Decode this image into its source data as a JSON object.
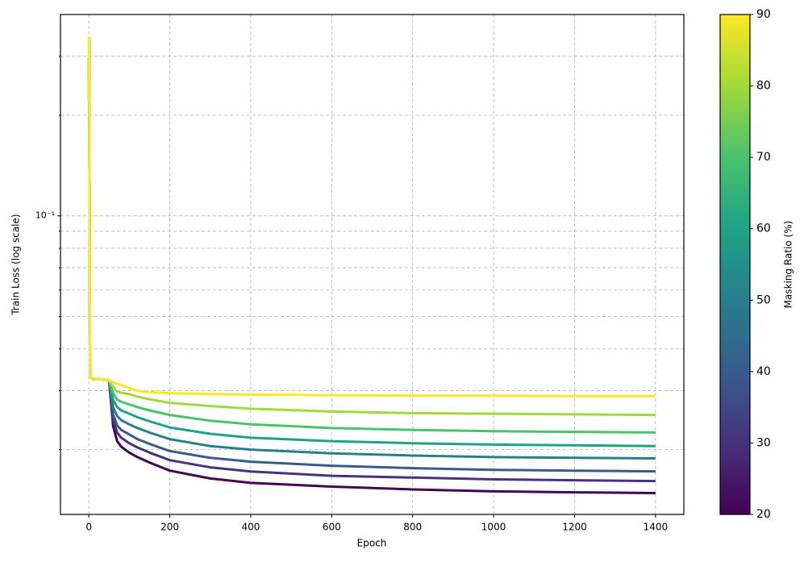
{
  "chart_data": {
    "type": "line",
    "xlabel": "Epoch",
    "ylabel": "Train Loss (log scale)",
    "x": [
      0,
      1,
      3,
      10,
      20,
      40,
      50,
      60,
      70,
      80,
      100,
      120,
      150,
      200,
      300,
      400,
      600,
      800,
      1000,
      1200,
      1400
    ],
    "xlim": [
      -70,
      1470
    ],
    "xticks": [
      0,
      200,
      400,
      600,
      800,
      1000,
      1200,
      1400
    ],
    "ylim": [
      0.0128,
      0.4
    ],
    "yscale": "log",
    "yticks": [
      {
        "value": 0.1,
        "label": "10⁻¹"
      }
    ],
    "yminorticks": [
      0.02,
      0.03,
      0.04,
      0.05,
      0.06,
      0.07,
      0.08,
      0.09,
      0.2,
      0.3
    ],
    "grid": true,
    "series": [
      {
        "color": "#440154",
        "values": [
          0.22,
          0.34,
          0.033,
          0.0325,
          0.0325,
          0.0324,
          0.0322,
          0.0235,
          0.0212,
          0.0204,
          0.0196,
          0.019,
          0.0183,
          0.0173,
          0.0164,
          0.0159,
          0.0155,
          0.0152,
          0.015,
          0.0149,
          0.01483
        ]
      },
      {
        "color": "#46327e",
        "values": [
          0.22,
          0.34,
          0.033,
          0.0325,
          0.0325,
          0.0324,
          0.0322,
          0.0245,
          0.0225,
          0.0217,
          0.0209,
          0.0203,
          0.0196,
          0.0186,
          0.0177,
          0.0172,
          0.0167,
          0.0165,
          0.0163,
          0.0162,
          0.01611
        ]
      },
      {
        "color": "#365c8d",
        "values": [
          0.22,
          0.34,
          0.033,
          0.0325,
          0.0325,
          0.0324,
          0.0322,
          0.0255,
          0.0236,
          0.0229,
          0.0222,
          0.0215,
          0.0208,
          0.0198,
          0.0189,
          0.0184,
          0.0179,
          0.0176,
          0.0174,
          0.0173,
          0.01722
        ]
      },
      {
        "color": "#277f8e",
        "values": [
          0.22,
          0.34,
          0.033,
          0.0325,
          0.0325,
          0.0324,
          0.0322,
          0.0268,
          0.0252,
          0.0245,
          0.0238,
          0.0232,
          0.0225,
          0.0215,
          0.0205,
          0.02,
          0.0195,
          0.0192,
          0.019,
          0.0189,
          0.01883
        ]
      },
      {
        "color": "#1fa187",
        "values": [
          0.22,
          0.34,
          0.033,
          0.0325,
          0.0325,
          0.0324,
          0.0322,
          0.0282,
          0.0268,
          0.0262,
          0.0256,
          0.025,
          0.0243,
          0.0233,
          0.0223,
          0.0217,
          0.0212,
          0.0209,
          0.0207,
          0.0206,
          0.0205
        ]
      },
      {
        "color": "#4ac16d",
        "values": [
          0.22,
          0.34,
          0.033,
          0.0325,
          0.0325,
          0.0324,
          0.0322,
          0.0295,
          0.0282,
          0.0278,
          0.0273,
          0.0268,
          0.0262,
          0.0254,
          0.0244,
          0.0238,
          0.0232,
          0.0229,
          0.0227,
          0.0226,
          0.0225
        ]
      },
      {
        "color": "#a0da39",
        "values": [
          0.22,
          0.34,
          0.033,
          0.0325,
          0.0325,
          0.0324,
          0.0322,
          0.0308,
          0.0298,
          0.0296,
          0.0293,
          0.0288,
          0.0283,
          0.0276,
          0.027,
          0.0265,
          0.026,
          0.0257,
          0.0256,
          0.0255,
          0.0254
        ]
      },
      {
        "color": "#fde725",
        "values": [
          0.22,
          0.34,
          0.033,
          0.0325,
          0.0325,
          0.0324,
          0.0322,
          0.0318,
          0.0315,
          0.0312,
          0.0305,
          0.03,
          0.0297,
          0.0295,
          0.0293,
          0.0292,
          0.0291,
          0.029,
          0.029,
          0.0289,
          0.0289
        ]
      }
    ],
    "colorbar": {
      "label": "Masking Ratio (%)",
      "lim": [
        20,
        90
      ],
      "ticks": [
        20,
        30,
        40,
        50,
        60,
        70,
        80,
        90
      ],
      "colors": [
        "#440154",
        "#46327e",
        "#365c8d",
        "#277f8e",
        "#1fa187",
        "#4ac16d",
        "#a0da39",
        "#fde725"
      ]
    }
  }
}
